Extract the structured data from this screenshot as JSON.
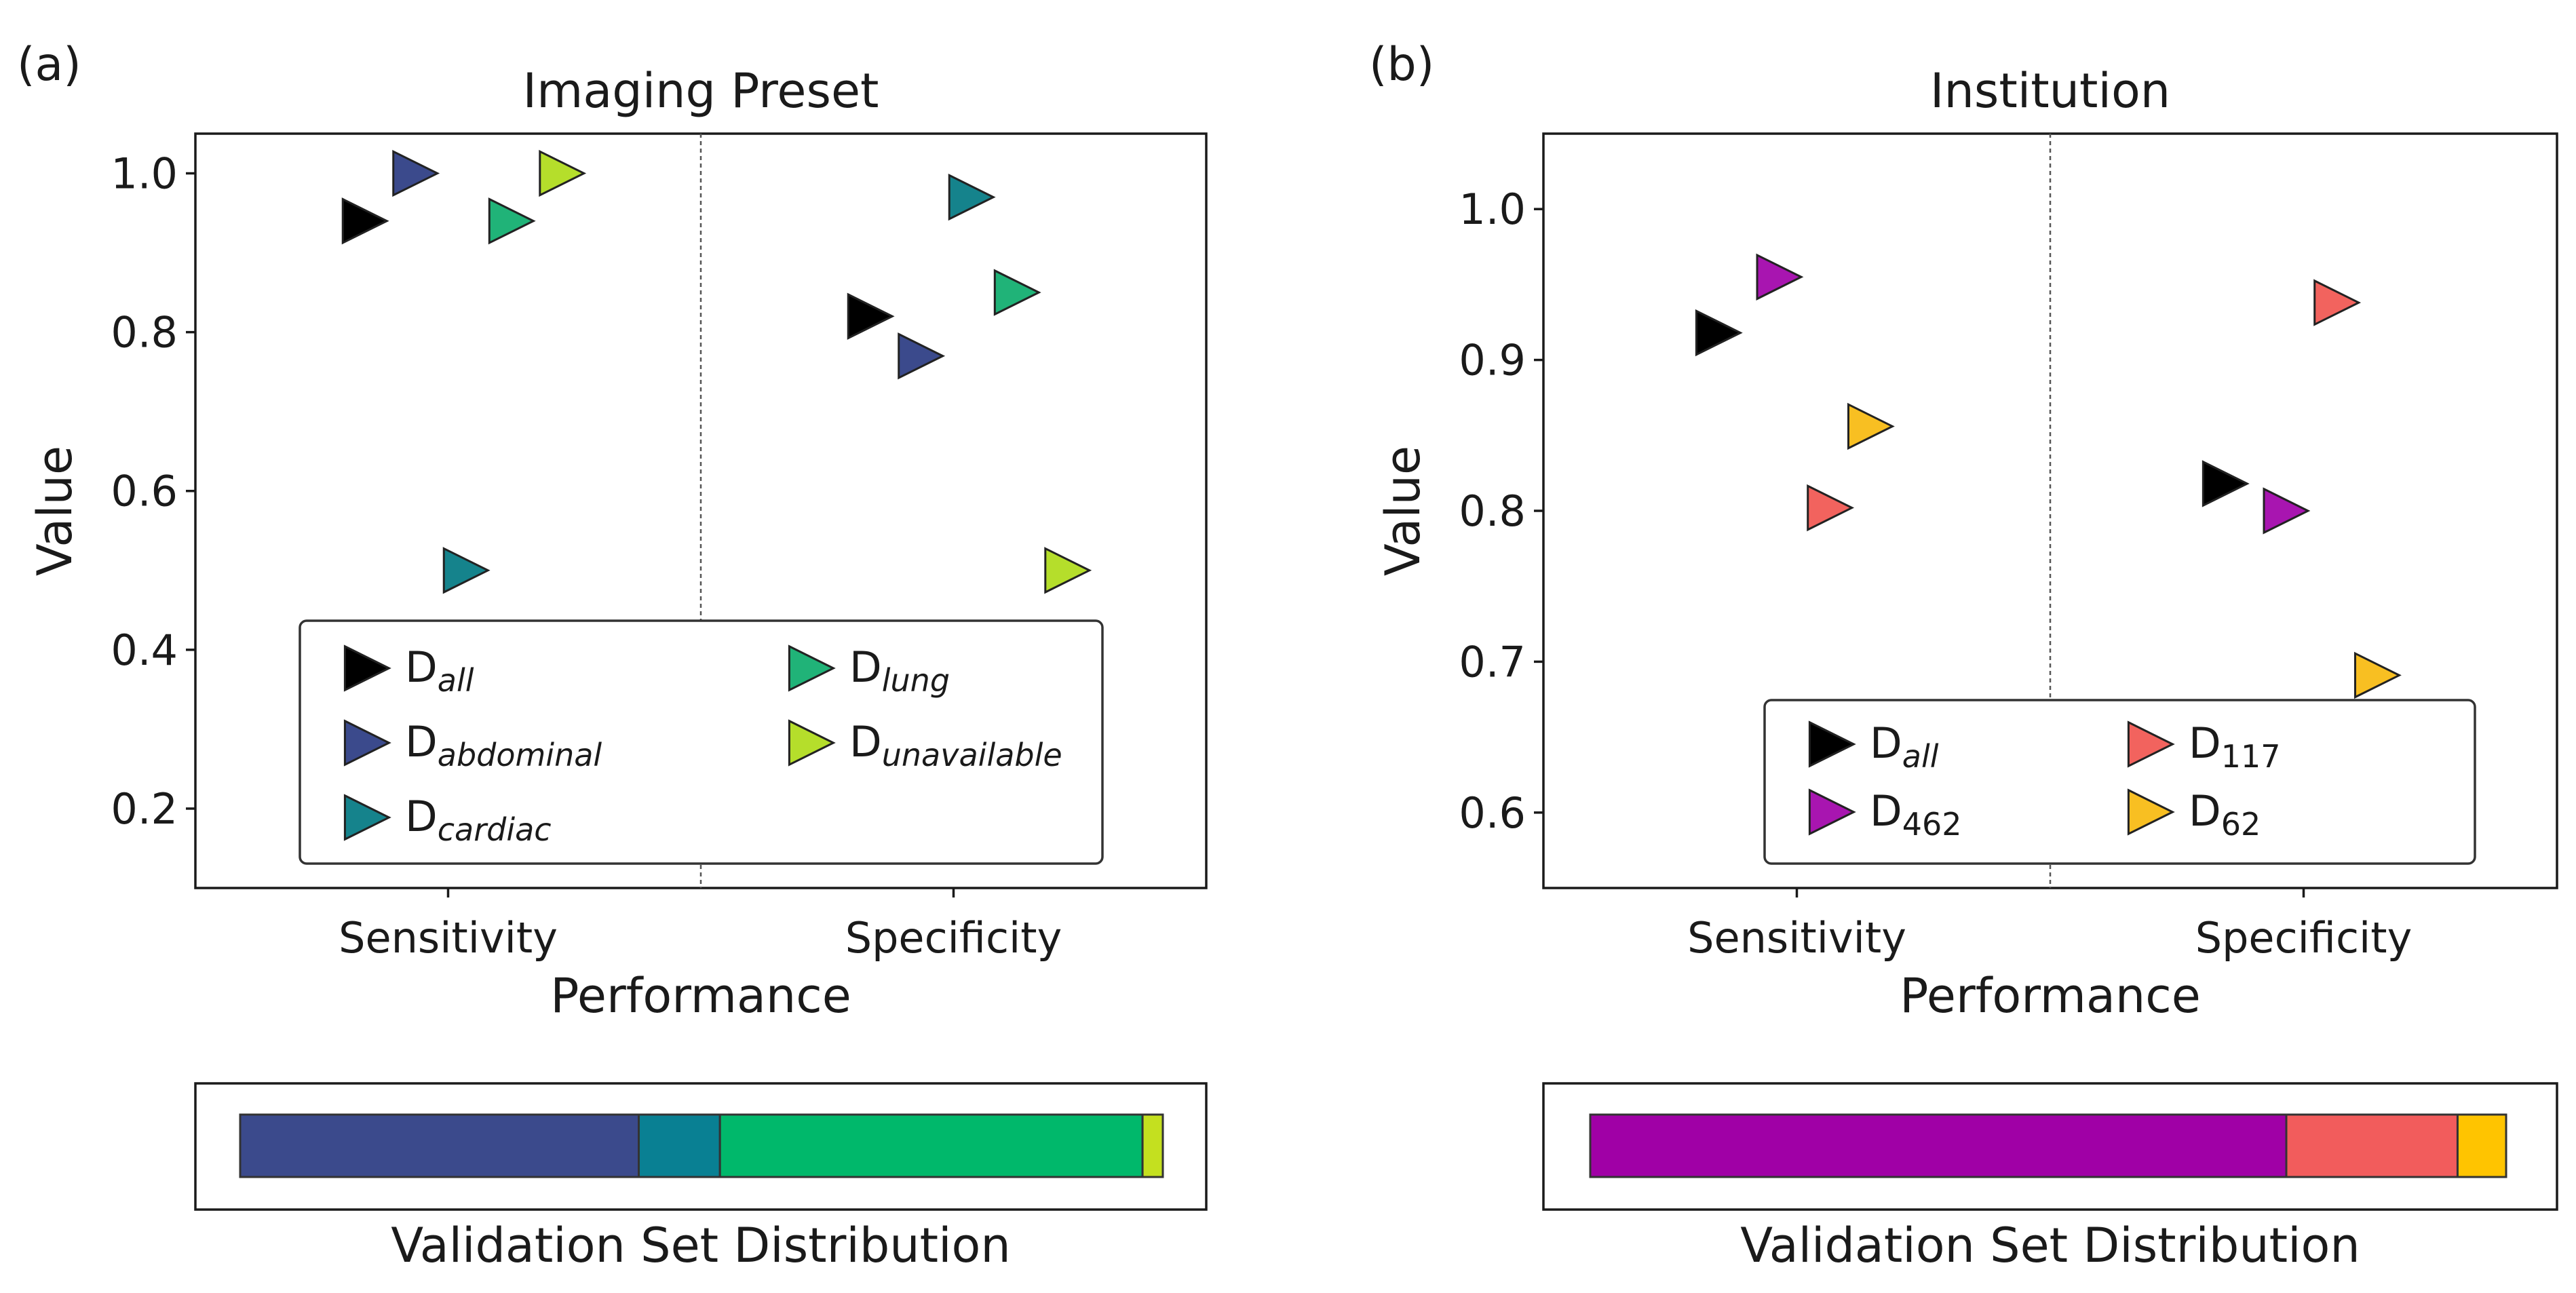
{
  "chart_data": [
    {
      "panel": "(a)",
      "type": "scatter",
      "title": "Imaging Preset",
      "xlabel": "Performance",
      "ylabel": "Value",
      "categories": [
        "Sensitivity",
        "Specificity"
      ],
      "ylim": [
        0.1,
        1.05
      ],
      "yticks": [
        0.2,
        0.4,
        0.6,
        0.8,
        1.0
      ],
      "ytick_labels": [
        "0.2",
        "0.4",
        "0.6",
        "0.8",
        "1.0"
      ],
      "legend_position": "lower-center",
      "series": [
        {
          "name": "D",
          "sub": "all",
          "color": "#000000",
          "values": [
            0.94,
            0.82
          ],
          "offsets": [
            -0.17,
            -0.17
          ]
        },
        {
          "name": "D",
          "sub": "abdominal",
          "color": "#3b4a8c",
          "values": [
            1.0,
            0.77
          ],
          "offsets": [
            -0.07,
            -0.07
          ]
        },
        {
          "name": "D",
          "sub": "cardiac",
          "color": "#15838c",
          "values": [
            0.5,
            0.97
          ],
          "offsets": [
            0.03,
            0.03
          ]
        },
        {
          "name": "D",
          "sub": "lung",
          "color": "#20b378",
          "values": [
            0.94,
            0.85
          ],
          "offsets": [
            0.12,
            0.12
          ]
        },
        {
          "name": "D",
          "sub": "unavailable",
          "color": "#b5de2b",
          "values": [
            1.0,
            0.5
          ],
          "offsets": [
            0.22,
            0.22
          ]
        }
      ],
      "distribution": {
        "label": "Validation Set Distribution",
        "shares": [
          0.432,
          0.088,
          0.458,
          0.022
        ],
        "colors": [
          "#3b4a8c",
          "#098093",
          "#00b86b",
          "#c4e01f"
        ]
      }
    },
    {
      "panel": "(b)",
      "type": "scatter",
      "title": "Institution",
      "xlabel": "Performance",
      "ylabel": "Value",
      "categories": [
        "Sensitivity",
        "Specificity"
      ],
      "ylim": [
        0.55,
        1.05
      ],
      "yticks": [
        0.6,
        0.7,
        0.8,
        0.9,
        1.0
      ],
      "ytick_labels": [
        "0.6",
        "0.7",
        "0.8",
        "0.9",
        "1.0"
      ],
      "legend_position": "lower-right",
      "series": [
        {
          "name": "D",
          "sub": "all",
          "color": "#000000",
          "values": [
            0.918,
            0.818
          ],
          "offsets": [
            -0.16,
            -0.16
          ]
        },
        {
          "name": "D",
          "sub": "462",
          "color": "#a815b0",
          "values": [
            0.955,
            0.8
          ],
          "offsets": [
            -0.04,
            -0.04
          ]
        },
        {
          "name": "D",
          "sub": "117",
          "color": "#f2635e",
          "values": [
            0.802,
            0.938
          ],
          "offsets": [
            0.06,
            0.06
          ]
        },
        {
          "name": "D",
          "sub": "62",
          "color": "#f8bf22",
          "values": [
            0.856,
            0.691
          ],
          "offsets": [
            0.14,
            0.14
          ]
        }
      ],
      "distribution": {
        "label": "Validation Set Distribution",
        "shares": [
          0.76,
          0.187,
          0.053
        ],
        "colors": [
          "#a000a6",
          "#f25c5c",
          "#ffc400"
        ]
      }
    }
  ]
}
